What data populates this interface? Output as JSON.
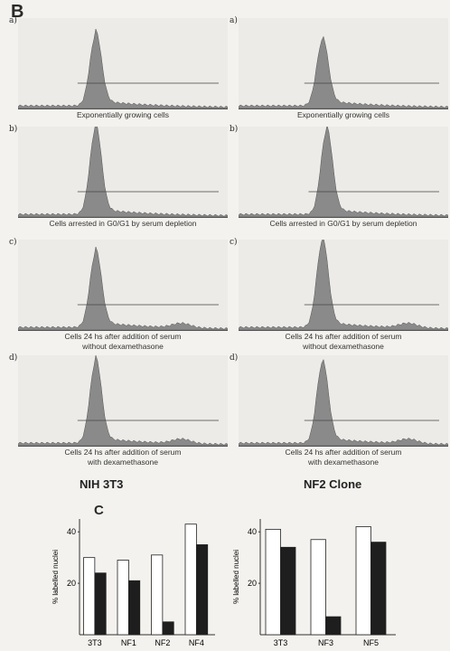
{
  "panel_b_label": "B",
  "panel_c_label": "C",
  "columns": [
    "NIH 3T3",
    "NF2 Clone"
  ],
  "histograms": [
    {
      "row": "a)",
      "caption": [
        "Exponentially growing cells"
      ]
    },
    {
      "row": "b)",
      "caption": [
        "Cells arrested in G0/G1 by serum depletion"
      ]
    },
    {
      "row": "c)",
      "caption": [
        "Cells 24 hs after addition of serum",
        "without dexamethasone"
      ]
    },
    {
      "row": "d)",
      "caption": [
        "Cells 24 hs after addition of serum",
        "with dexamethasone"
      ]
    }
  ],
  "colors": {
    "open_bar": "#ffffff",
    "filled_bar": "#1e1e1e",
    "histogram": "#8a8a8a"
  },
  "chart_data": [
    {
      "type": "bar",
      "categories": [
        "3T3",
        "NF1",
        "NF2",
        "NF4"
      ],
      "series": [
        {
          "values": [
            30,
            29,
            31,
            43
          ]
        },
        {
          "values": [
            24,
            21,
            5,
            35
          ]
        }
      ],
      "ylabel": "% labelled nuclei",
      "yticks": [
        20,
        40
      ],
      "ylim": [
        0,
        45
      ]
    },
    {
      "type": "bar",
      "categories": [
        "3T3",
        "NF3",
        "NF5"
      ],
      "series": [
        {
          "values": [
            41,
            37,
            42
          ]
        },
        {
          "values": [
            34,
            7,
            36
          ]
        }
      ],
      "ylabel": "% labelled nuclei",
      "yticks": [
        20,
        40
      ],
      "ylim": [
        0,
        45
      ]
    }
  ]
}
